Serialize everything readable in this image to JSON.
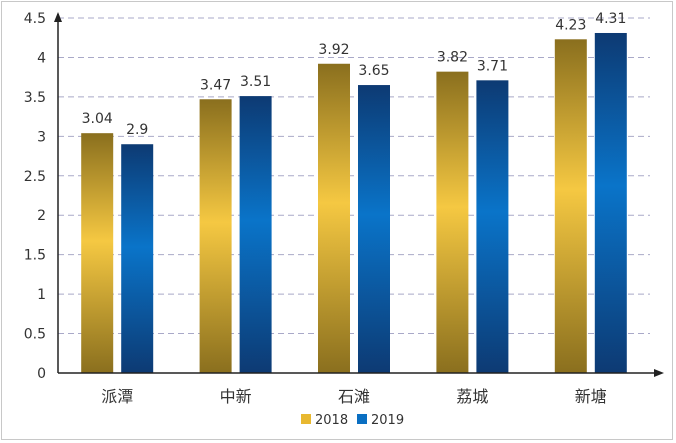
{
  "chart_data": {
    "type": "bar",
    "title": "",
    "xlabel": "",
    "ylabel": "",
    "categories": [
      "派潭",
      "中新",
      "石滩",
      "荔城",
      "新塘"
    ],
    "series": [
      {
        "name": "2018",
        "values": [
          3.04,
          3.47,
          3.92,
          3.82,
          4.23
        ]
      },
      {
        "name": "2019",
        "values": [
          2.9,
          3.51,
          3.65,
          3.71,
          4.31
        ]
      }
    ],
    "ylim": [
      0,
      4.5
    ],
    "yticks": [
      "0",
      "0.5",
      "1",
      "1.5",
      "2",
      "2.5",
      "3",
      "3.5",
      "4",
      "4.5"
    ],
    "grid": "horizontal dashed",
    "legend_position": "bottom-center",
    "colors": {
      "2018": {
        "top": "#8a6f1e",
        "mid": "#f5c842",
        "bottom": "#8a6f1e"
      },
      "2019": {
        "top": "#0d3a73",
        "mid": "#0a74c9",
        "bottom": "#0d3a73"
      }
    }
  }
}
